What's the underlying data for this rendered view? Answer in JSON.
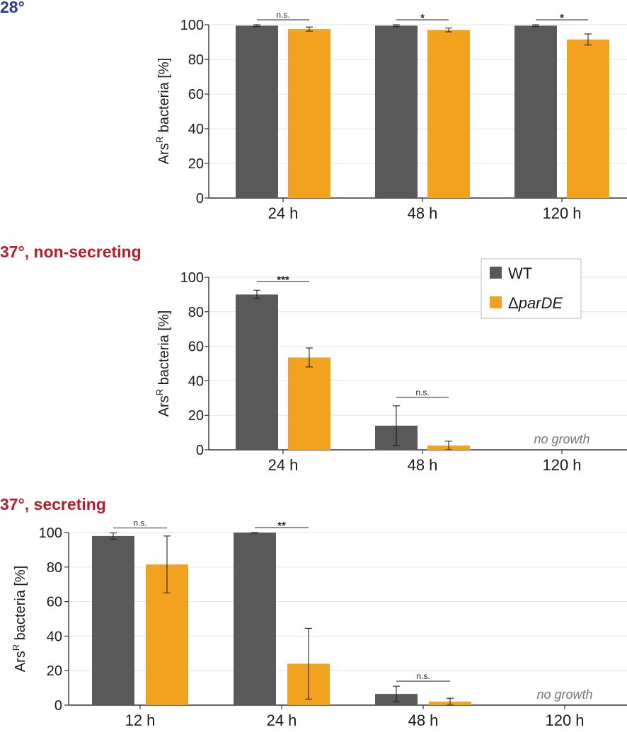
{
  "colors": {
    "wt": "#595959",
    "mutant": "#F2A21E",
    "title_28": "#2A3A8C",
    "title_37": "#B71C2B"
  },
  "legend": {
    "wt": "WT",
    "mutant_prefix": "Δ",
    "mutant_italic": "parDE"
  },
  "ylabel": {
    "prefix": "Ars",
    "sup": "R",
    "suffix": " bacteria [%]"
  },
  "chart_data": [
    {
      "type": "bar",
      "title": "28°",
      "categories": [
        "24 h",
        "48 h",
        "120 h"
      ],
      "ylim": [
        0,
        100
      ],
      "yticks": [
        0,
        20,
        40,
        60,
        80,
        100
      ],
      "series": [
        {
          "name": "WT",
          "values": [
            99.5,
            99.5,
            99.5
          ],
          "errors": [
            0.6,
            0.6,
            0.6
          ]
        },
        {
          "name": "ΔparDE",
          "values": [
            97.5,
            97,
            91.5
          ],
          "errors": [
            1.2,
            1.1,
            3.2
          ]
        }
      ],
      "significance": [
        "n.s.",
        "*",
        "*"
      ],
      "no_growth": [
        null,
        null,
        null
      ]
    },
    {
      "type": "bar",
      "title": "37°, non-secreting",
      "categories": [
        "24 h",
        "48 h",
        "120 h"
      ],
      "ylim": [
        0,
        100
      ],
      "yticks": [
        0,
        20,
        40,
        60,
        80,
        100
      ],
      "series": [
        {
          "name": "WT",
          "values": [
            90,
            14,
            null
          ],
          "errors": [
            2.5,
            11.5,
            null
          ]
        },
        {
          "name": "ΔparDE",
          "values": [
            53.5,
            2.5,
            null
          ],
          "errors": [
            5.5,
            2.5,
            null
          ]
        }
      ],
      "significance": [
        "***",
        "n.s.",
        null
      ],
      "no_growth": [
        null,
        null,
        "no growth"
      ]
    },
    {
      "type": "bar",
      "title": "37°, secreting",
      "categories": [
        "12 h",
        "24 h",
        "48 h",
        "120 h"
      ],
      "ylim": [
        0,
        100
      ],
      "yticks": [
        0,
        20,
        40,
        60,
        80,
        100
      ],
      "series": [
        {
          "name": "WT",
          "values": [
            98,
            100,
            6.5,
            null
          ],
          "errors": [
            1.8,
            0.3,
            4.5,
            null
          ]
        },
        {
          "name": "ΔparDE",
          "values": [
            81.5,
            24,
            2,
            null
          ],
          "errors": [
            16.5,
            20.5,
            2,
            null
          ]
        }
      ],
      "significance": [
        "n.s.",
        "**",
        "n.s.",
        null
      ],
      "no_growth": [
        null,
        null,
        null,
        "no growth"
      ]
    }
  ]
}
